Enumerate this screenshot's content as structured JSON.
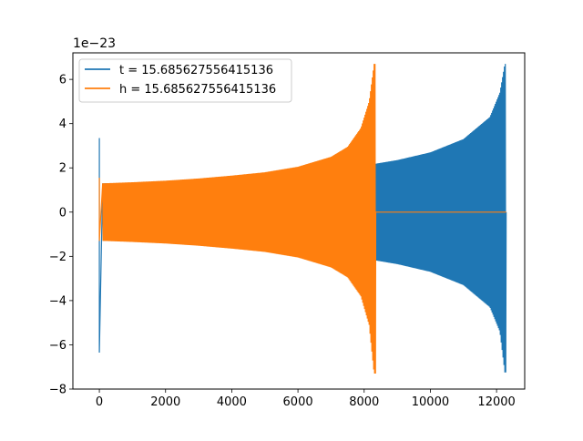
{
  "chart_data": {
    "type": "line",
    "title": "",
    "xlabel": "",
    "ylabel": "",
    "y_offset_label": "1e−23",
    "xlim": [
      -800,
      12850
    ],
    "ylim": [
      -8,
      7.2
    ],
    "xticks": [
      0,
      2000,
      4000,
      6000,
      8000,
      10000,
      12000
    ],
    "xtick_labels": [
      "0",
      "2000",
      "4000",
      "6000",
      "8000",
      "10000",
      "12000"
    ],
    "yticks": [
      -8,
      -6,
      -4,
      -2,
      0,
      2,
      4,
      6
    ],
    "ytick_labels": [
      "−8",
      "−6",
      "−4",
      "−2",
      "0",
      "2",
      "4",
      "6"
    ],
    "grid": false,
    "legend_position": "upper-left",
    "series": [
      {
        "name": "t = 15.685627556415136",
        "color": "#1f77b4",
        "description": "oscillating chirp signal spanning 0 to ~12290, amplitude envelope rising toward end",
        "spike_x": 0,
        "spike_range": [
          -6.35,
          3.35
        ],
        "envelope_x": [
          100,
          1000,
          2000,
          3000,
          4000,
          5000,
          6000,
          7000,
          8000,
          9000,
          10000,
          11000,
          11800,
          12100,
          12250,
          12290
        ],
        "envelope_upper": [
          1.3,
          1.32,
          1.38,
          1.45,
          1.52,
          1.62,
          1.75,
          1.9,
          2.1,
          2.35,
          2.7,
          3.3,
          4.3,
          5.4,
          6.7,
          6.7
        ],
        "envelope_lower": [
          -1.3,
          -1.32,
          -1.38,
          -1.45,
          -1.52,
          -1.62,
          -1.75,
          -1.9,
          -2.1,
          -2.35,
          -2.7,
          -3.3,
          -4.3,
          -5.4,
          -7.25,
          -7.25
        ],
        "x_end": 12290
      },
      {
        "name": "h = 15.685627556415136",
        "color": "#ff7f0e",
        "description": "oscillating chirp signal spanning 0 to ~8350, then flat at 0 until ~12290",
        "spike_x": 0,
        "spike_range": [
          -1.3,
          1.55
        ],
        "envelope_x": [
          100,
          1000,
          2000,
          3000,
          4000,
          5000,
          6000,
          7000,
          7500,
          7900,
          8150,
          8300,
          8340
        ],
        "envelope_upper": [
          1.3,
          1.35,
          1.42,
          1.52,
          1.65,
          1.8,
          2.05,
          2.5,
          2.95,
          3.8,
          5.0,
          6.7,
          6.7
        ],
        "envelope_lower": [
          -1.3,
          -1.35,
          -1.42,
          -1.52,
          -1.65,
          -1.8,
          -2.05,
          -2.5,
          -2.95,
          -3.8,
          -5.1,
          -7.3,
          -7.3
        ],
        "x_end": 8350,
        "flat_until": 12290
      }
    ]
  }
}
